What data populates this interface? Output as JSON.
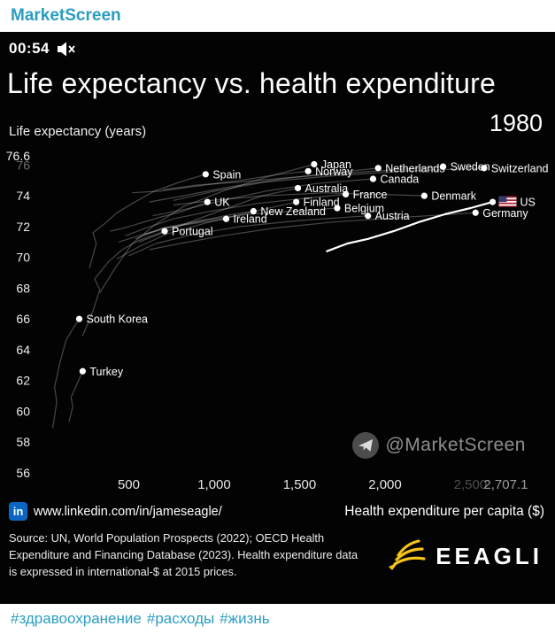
{
  "post": {
    "channel": "MarketScreen",
    "hashtags": [
      "#здравоохранение",
      "#расходы",
      "#жизнь"
    ],
    "accent_color": "#2b9dc1"
  },
  "video": {
    "timestamp": "00:54",
    "muted": true
  },
  "chart_data": {
    "type": "scatter",
    "title": "Life expectancy vs. health expenditure",
    "year_label": "1980",
    "ylabel": "Life expectancy (years)",
    "xlabel": "Health expenditure per capita ($)",
    "xlim": [
      0,
      2850
    ],
    "ylim": [
      56,
      77
    ],
    "grid": false,
    "point_color": "#ffffff",
    "trail_color": "rgba(255,255,255,0.27)",
    "highlight_color": "#ffffff",
    "x_ticks": [
      {
        "value": 500,
        "label": "500",
        "color": "#e8e8e8"
      },
      {
        "value": 1000,
        "label": "1,000",
        "color": "#e8e8e8"
      },
      {
        "value": 1500,
        "label": "1,500",
        "color": "#e8e8e8"
      },
      {
        "value": 2000,
        "label": "2,000",
        "color": "#e8e8e8"
      },
      {
        "value": 2500,
        "label": "2,500",
        "color": "#4e4e4e"
      },
      {
        "value": 2707.1,
        "label": "2,707.1",
        "color": "#9b9b9b"
      }
    ],
    "y_ticks": [
      {
        "value": 56,
        "label": "56",
        "color": "#ededed"
      },
      {
        "value": 58,
        "label": "58",
        "color": "#ededed"
      },
      {
        "value": 60,
        "label": "60",
        "color": "#ededed"
      },
      {
        "value": 62,
        "label": "62",
        "color": "#ededed"
      },
      {
        "value": 64,
        "label": "64",
        "color": "#ededed"
      },
      {
        "value": 66,
        "label": "66",
        "color": "#ededed"
      },
      {
        "value": 68,
        "label": "68",
        "color": "#ededed"
      },
      {
        "value": 70,
        "label": "70",
        "color": "#ededed"
      },
      {
        "value": 72,
        "label": "72",
        "color": "#ededed"
      },
      {
        "value": 74,
        "label": "74",
        "color": "#ededed"
      },
      {
        "value": 76,
        "label": "76",
        "color": "#6f6f6f"
      },
      {
        "value": 76.6,
        "label": "76.6",
        "color": "#f2f2f2"
      }
    ],
    "points": [
      {
        "label": "Spain",
        "x": 950,
        "y": 75.4
      },
      {
        "label": "Japan",
        "x": 1585,
        "y": 76.05
      },
      {
        "label": "Norway",
        "x": 1550,
        "y": 75.6
      },
      {
        "label": "Netherlands",
        "x": 1960,
        "y": 75.8
      },
      {
        "label": "Sweden",
        "x": 2340,
        "y": 75.9
      },
      {
        "label": "Switzerland",
        "x": 2580,
        "y": 75.8
      },
      {
        "label": "Canada",
        "x": 1930,
        "y": 75.1
      },
      {
        "label": "Australia",
        "x": 1490,
        "y": 74.5
      },
      {
        "label": "France",
        "x": 1770,
        "y": 74.1
      },
      {
        "label": "Denmark",
        "x": 2230,
        "y": 74.0
      },
      {
        "label": "UK",
        "x": 960,
        "y": 73.6
      },
      {
        "label": "Finland",
        "x": 1480,
        "y": 73.6
      },
      {
        "label": "Belgium",
        "x": 1720,
        "y": 73.2
      },
      {
        "label": "New Zealand",
        "x": 1230,
        "y": 73.0
      },
      {
        "label": "Ireland",
        "x": 1070,
        "y": 72.5
      },
      {
        "label": "Austria",
        "x": 1900,
        "y": 72.7
      },
      {
        "label": "Germany",
        "x": 2530,
        "y": 72.9
      },
      {
        "label": "US",
        "x": 2630,
        "y": 73.6,
        "flag": true
      },
      {
        "label": "Portugal",
        "x": 710,
        "y": 71.7
      },
      {
        "label": "South Korea",
        "x": 210,
        "y": 66.0
      },
      {
        "label": "Turkey",
        "x": 230,
        "y": 62.6
      }
    ],
    "trails": [
      {
        "country": "Spain",
        "points": [
          [
            270,
            69.3
          ],
          [
            310,
            70.9
          ],
          [
            290,
            71.6
          ],
          [
            360,
            72.2
          ],
          [
            430,
            72.9
          ],
          [
            520,
            73.5
          ],
          [
            650,
            74.3
          ],
          [
            800,
            74.9
          ],
          [
            950,
            75.4
          ]
        ]
      },
      {
        "country": "Japan",
        "points": [
          [
            330,
            67.7
          ],
          [
            420,
            69.3
          ],
          [
            520,
            70.9
          ],
          [
            650,
            72.1
          ],
          [
            820,
            73.3
          ],
          [
            1050,
            74.3
          ],
          [
            1300,
            75.2
          ],
          [
            1585,
            76.05
          ]
        ]
      },
      {
        "country": "UK",
        "points": [
          [
            390,
            71.7
          ],
          [
            470,
            71.9
          ],
          [
            560,
            72.2
          ],
          [
            680,
            72.6
          ],
          [
            820,
            73.0
          ],
          [
            960,
            73.6
          ]
        ]
      },
      {
        "country": "France",
        "points": [
          [
            480,
            71.4
          ],
          [
            600,
            71.9
          ],
          [
            760,
            72.5
          ],
          [
            980,
            73.0
          ],
          [
            1250,
            73.5
          ],
          [
            1500,
            73.8
          ],
          [
            1770,
            74.1
          ]
        ]
      },
      {
        "country": "Germany",
        "points": [
          [
            620,
            70.5
          ],
          [
            800,
            70.9
          ],
          [
            1050,
            71.4
          ],
          [
            1350,
            71.9
          ],
          [
            1700,
            72.3
          ],
          [
            2100,
            72.6
          ],
          [
            2530,
            72.9
          ]
        ]
      },
      {
        "country": "Sweden",
        "points": [
          [
            700,
            74.4
          ],
          [
            900,
            74.7
          ],
          [
            1150,
            74.9
          ],
          [
            1450,
            75.2
          ],
          [
            1800,
            75.5
          ],
          [
            2340,
            75.9
          ]
        ]
      },
      {
        "country": "Switzerland",
        "points": [
          [
            760,
            73.7
          ],
          [
            1000,
            74.3
          ],
          [
            1300,
            74.9
          ],
          [
            1700,
            75.3
          ],
          [
            2100,
            75.6
          ],
          [
            2580,
            75.8
          ]
        ]
      },
      {
        "country": "Netherlands",
        "points": [
          [
            620,
            73.6
          ],
          [
            820,
            74.0
          ],
          [
            1100,
            74.6
          ],
          [
            1400,
            75.1
          ],
          [
            1700,
            75.5
          ],
          [
            1960,
            75.8
          ]
        ]
      },
      {
        "country": "Canada",
        "points": [
          [
            640,
            72.7
          ],
          [
            820,
            73.1
          ],
          [
            1050,
            73.7
          ],
          [
            1300,
            74.3
          ],
          [
            1600,
            74.8
          ],
          [
            1930,
            75.1
          ]
        ]
      },
      {
        "country": "Norway",
        "points": [
          [
            520,
            74.2
          ],
          [
            680,
            74.3
          ],
          [
            880,
            74.6
          ],
          [
            1150,
            75.0
          ],
          [
            1380,
            75.4
          ],
          [
            1550,
            75.6
          ]
        ]
      },
      {
        "country": "Denmark",
        "points": [
          [
            760,
            73.4
          ],
          [
            980,
            73.7
          ],
          [
            1300,
            74.0
          ],
          [
            1650,
            74.2
          ],
          [
            1950,
            74.1
          ],
          [
            2230,
            74.0
          ]
        ]
      },
      {
        "country": "Finland",
        "points": [
          [
            430,
            69.9
          ],
          [
            560,
            70.7
          ],
          [
            720,
            71.5
          ],
          [
            940,
            72.2
          ],
          [
            1200,
            72.9
          ],
          [
            1480,
            73.6
          ]
        ]
      },
      {
        "country": "Australia",
        "points": [
          [
            560,
            71.0
          ],
          [
            700,
            71.6
          ],
          [
            880,
            72.4
          ],
          [
            1080,
            73.2
          ],
          [
            1280,
            74.0
          ],
          [
            1490,
            74.5
          ]
        ]
      },
      {
        "country": "Belgium",
        "points": [
          [
            540,
            71.2
          ],
          [
            700,
            71.9
          ],
          [
            920,
            72.4
          ],
          [
            1200,
            72.8
          ],
          [
            1450,
            73.0
          ],
          [
            1720,
            73.2
          ]
        ]
      },
      {
        "country": "New Zealand",
        "points": [
          [
            590,
            71.5
          ],
          [
            730,
            71.9
          ],
          [
            900,
            72.3
          ],
          [
            1060,
            72.7
          ],
          [
            1230,
            73.0
          ]
        ]
      },
      {
        "country": "Ireland",
        "points": [
          [
            440,
            71.0
          ],
          [
            560,
            71.4
          ],
          [
            700,
            71.9
          ],
          [
            880,
            72.2
          ],
          [
            1070,
            72.5
          ]
        ]
      },
      {
        "country": "Austria",
        "points": [
          [
            500,
            70.1
          ],
          [
            660,
            70.9
          ],
          [
            880,
            71.5
          ],
          [
            1150,
            72.0
          ],
          [
            1500,
            72.4
          ],
          [
            1900,
            72.7
          ]
        ]
      },
      {
        "country": "Portugal",
        "points": [
          [
            230,
            64.9
          ],
          [
            290,
            66.5
          ],
          [
            330,
            67.9
          ],
          [
            300,
            68.6
          ],
          [
            380,
            69.7
          ],
          [
            460,
            70.5
          ],
          [
            560,
            71.1
          ],
          [
            710,
            71.7
          ]
        ]
      },
      {
        "country": "South Korea",
        "points": [
          [
            55,
            58.9
          ],
          [
            78,
            60.6
          ],
          [
            66,
            61.6
          ],
          [
            98,
            63.2
          ],
          [
            132,
            64.6
          ],
          [
            175,
            65.4
          ],
          [
            210,
            66.0
          ]
        ]
      },
      {
        "country": "Turkey",
        "points": [
          [
            150,
            59.3
          ],
          [
            172,
            60.3
          ],
          [
            162,
            60.9
          ],
          [
            190,
            61.6
          ],
          [
            210,
            62.1
          ],
          [
            230,
            62.6
          ]
        ]
      }
    ],
    "highlight_trail": {
      "country": "US",
      "points": [
        [
          1660,
          70.4
        ],
        [
          1780,
          70.9
        ],
        [
          1900,
          71.2
        ],
        [
          2050,
          71.7
        ],
        [
          2200,
          72.3
        ],
        [
          2350,
          72.8
        ],
        [
          2500,
          73.2
        ],
        [
          2630,
          73.6
        ]
      ]
    },
    "legend_position": "none"
  },
  "watermark": {
    "handle": "@MarketScreen"
  },
  "footer": {
    "linkedin_badge": "in",
    "linkedin_url": "www.linkedin.com/in/jameseagle/",
    "source_text": "Source: UN, World Population Prospects (2022); OECD Health Expenditure and Financing Database (2023). Health expenditure data is expressed in international-$ at 2015 prices.",
    "logo_text": "EEAGLI",
    "logo_color": "#f6c418"
  }
}
